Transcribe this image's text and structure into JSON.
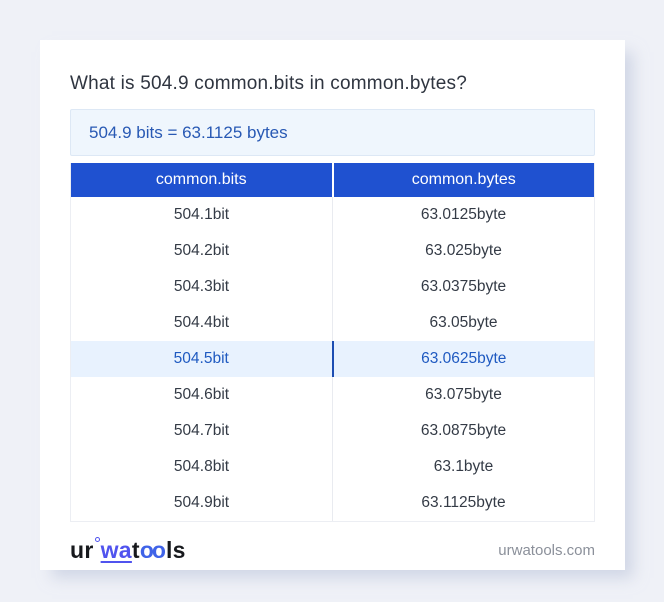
{
  "page": {
    "title": "What is 504.9 common.bits in common.bytes?",
    "result": "504.9 bits = 63.1125 bytes"
  },
  "table": {
    "columns": [
      "common.bits",
      "common.bytes"
    ],
    "rows": [
      {
        "bits": "504.1bit",
        "bytes": "63.0125byte"
      },
      {
        "bits": "504.2bit",
        "bytes": "63.025byte"
      },
      {
        "bits": "504.3bit",
        "bytes": "63.0375byte"
      },
      {
        "bits": "504.4bit",
        "bytes": "63.05byte"
      },
      {
        "bits": "504.5bit",
        "bytes": "63.0625byte"
      },
      {
        "bits": "504.6bit",
        "bytes": "63.075byte"
      },
      {
        "bits": "504.7bit",
        "bytes": "63.0875byte"
      },
      {
        "bits": "504.8bit",
        "bytes": "63.1byte"
      },
      {
        "bits": "504.9bit",
        "bytes": "63.1125byte"
      }
    ],
    "highlighted_row_index": 4
  },
  "footer": {
    "logo": {
      "part_ur": "ur",
      "part_wa": "wa",
      "part_t": "t",
      "part_oo": "oo",
      "part_ls": "ls"
    },
    "site": "urwatools.com"
  },
  "colors": {
    "page_background": "#eff1f7",
    "card_background": "#ffffff",
    "header_blue": "#1f51d0",
    "result_box_background": "#eff6fd",
    "result_text": "#2859b4",
    "highlight_row_background": "#e8f2fe",
    "highlight_row_text": "#1f5ac1",
    "logo_blue": "#5053ee"
  }
}
